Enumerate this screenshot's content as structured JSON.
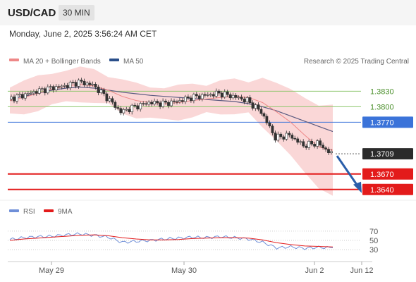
{
  "header": {
    "pair": "USD/CAD",
    "timeframe": "30 MIN",
    "datetime": "Monday, June 2, 2025 3:56:24 AM CET"
  },
  "legend": {
    "ma20": "MA 20 + Bollinger Bands",
    "ma50": "MA 50",
    "credit": "Research © 2025 Trading Central"
  },
  "rsi_legend": {
    "rsi": "RSI",
    "ma9": "9MA"
  },
  "colors": {
    "bollinger_fill": "#f8caca",
    "ma20": "#ee8888",
    "ma50": "#555577",
    "support": "#e31b1b",
    "pivot": "#3b73d9",
    "resistance": "#8cc66b",
    "arrow": "#2a5eaa",
    "rsi": "#6f8fd8",
    "rsi_ma": "#e31b1b"
  },
  "chart_data": [
    {
      "type": "line",
      "title": "USD/CAD 30 MIN",
      "x_ticks": [
        "May 29",
        "May 30",
        "Jun 2",
        "Jun 12"
      ],
      "ylim": [
        1.3622,
        1.387
      ],
      "levels": [
        {
          "label": "1.3830",
          "value": 1.383,
          "kind": "resistance"
        },
        {
          "label": "1.3800",
          "value": 1.38,
          "kind": "resistance"
        },
        {
          "label": "1.3770",
          "value": 1.377,
          "kind": "pivot"
        },
        {
          "label": "1.3709",
          "value": 1.3709,
          "kind": "last"
        },
        {
          "label": "1.3670",
          "value": 1.367,
          "kind": "support"
        },
        {
          "label": "1.3640",
          "value": 1.364,
          "kind": "support"
        }
      ],
      "series": [
        {
          "name": "MA 20 + Bollinger Bands",
          "values": [
            1.3812,
            1.3818,
            1.3826,
            1.3834,
            1.384,
            1.3843,
            1.384,
            1.3832,
            1.382,
            1.3812,
            1.3808,
            1.3806,
            1.3808,
            1.3812,
            1.3815,
            1.3818,
            1.382,
            1.3818,
            1.3808,
            1.379,
            1.377,
            1.3745,
            1.3722,
            1.3716
          ]
        },
        {
          "name": "MA 50",
          "values": [
            1.3815,
            1.382,
            1.3826,
            1.3832,
            1.3836,
            1.3838,
            1.3836,
            1.3832,
            1.3828,
            1.3825,
            1.3822,
            1.382,
            1.3818,
            1.3816,
            1.3814,
            1.3812,
            1.381,
            1.3806,
            1.38,
            1.3792,
            1.3782,
            1.3772,
            1.3762,
            1.3752
          ]
        },
        {
          "name": "Price",
          "values": [
            1.3815,
            1.3822,
            1.383,
            1.3836,
            1.384,
            1.3848,
            1.3842,
            1.3818,
            1.379,
            1.38,
            1.3808,
            1.3806,
            1.381,
            1.3818,
            1.3822,
            1.3826,
            1.382,
            1.3812,
            1.379,
            1.374,
            1.3745,
            1.3725,
            1.373,
            1.3709
          ]
        }
      ],
      "forecast": [
        1.3709,
        1.364
      ]
    },
    {
      "type": "line",
      "title": "RSI",
      "ylim": [
        15,
        85
      ],
      "y_ticks": [
        70,
        50,
        30
      ],
      "series": [
        {
          "name": "RSI",
          "values": [
            52,
            56,
            58,
            59,
            62,
            64,
            61,
            57,
            46,
            48,
            50,
            53,
            55,
            57,
            56,
            58,
            56,
            53,
            46,
            34,
            36,
            33,
            35,
            34
          ]
        },
        {
          "name": "9MA",
          "values": [
            50,
            53,
            55,
            57,
            59,
            61,
            62,
            60,
            56,
            53,
            51,
            51,
            52,
            54,
            55,
            56,
            56,
            55,
            51,
            45,
            41,
            38,
            37,
            36
          ]
        }
      ]
    }
  ]
}
